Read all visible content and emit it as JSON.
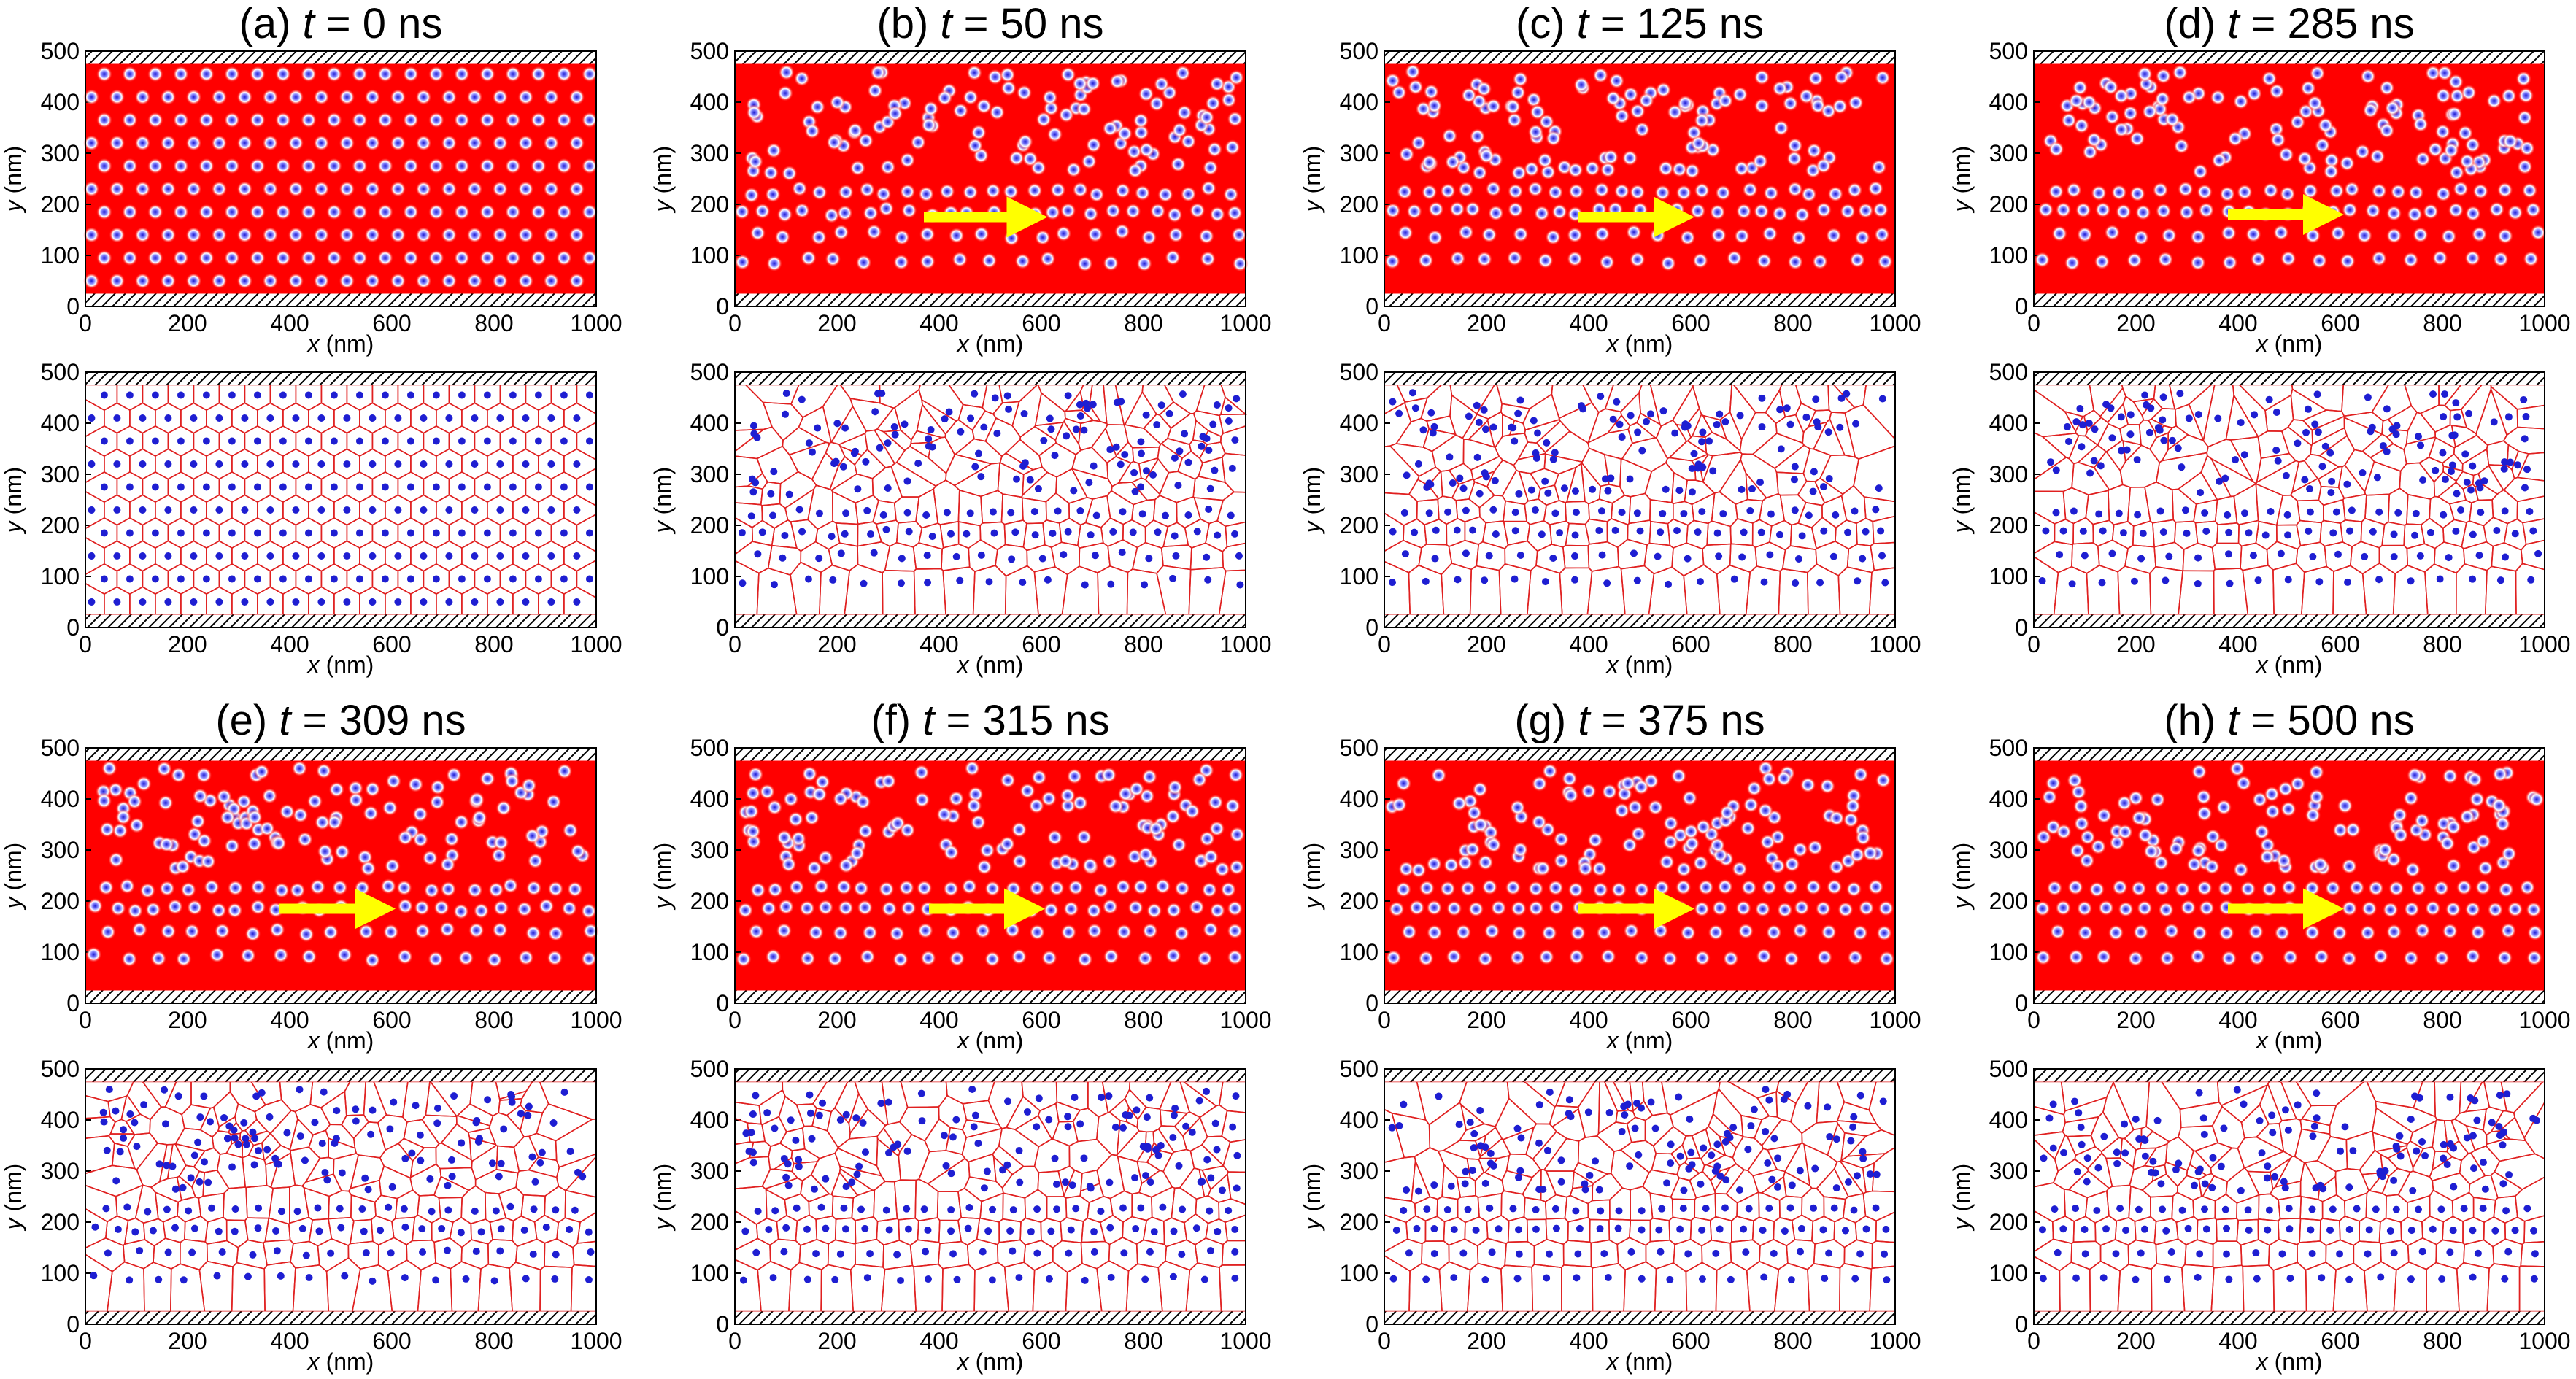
{
  "figure": {
    "background": "#ffffff",
    "colors": {
      "field": "#ff0000",
      "skyrmion_core": "#1e1ed2",
      "voronoi_edge": "#e02020",
      "voronoi_bg": "#ffffff",
      "arrow": "#ffff00",
      "hatch": "#000000"
    }
  },
  "chart_data": [
    {
      "id": "a",
      "label_prefix": "(a)",
      "var": "t",
      "eq": " = ",
      "value_text": "0 ns",
      "time_ns": 0,
      "arrow": null
    },
    {
      "id": "b",
      "label_prefix": "(b)",
      "var": "t",
      "eq": " = ",
      "value_text": "50 ns",
      "time_ns": 50,
      "arrow": {
        "x_start": 370,
        "x_end": 625,
        "y": 175
      }
    },
    {
      "id": "c",
      "label_prefix": "(c)",
      "var": "t",
      "eq": " = ",
      "value_text": "125 ns",
      "time_ns": 125,
      "arrow": {
        "x_start": 380,
        "x_end": 620,
        "y": 175
      }
    },
    {
      "id": "d",
      "label_prefix": "(d)",
      "var": "t",
      "eq": " = ",
      "value_text": "285 ns",
      "time_ns": 285,
      "arrow": {
        "x_start": 380,
        "x_end": 620,
        "y": 180
      }
    },
    {
      "id": "e",
      "label_prefix": "(e)",
      "var": "t",
      "eq": " = ",
      "value_text": "309 ns",
      "time_ns": 309,
      "arrow": {
        "x_start": 380,
        "x_end": 620,
        "y": 185
      }
    },
    {
      "id": "f",
      "label_prefix": "(f)",
      "var": "t",
      "eq": " = ",
      "value_text": "315 ns",
      "time_ns": 315,
      "arrow": {
        "x_start": 380,
        "x_end": 620,
        "y": 185
      }
    },
    {
      "id": "g",
      "label_prefix": "(g)",
      "var": "t",
      "eq": " = ",
      "value_text": "375 ns",
      "time_ns": 375,
      "arrow": {
        "x_start": 380,
        "x_end": 620,
        "y": 185
      }
    },
    {
      "id": "h",
      "label_prefix": "(h)",
      "var": "t",
      "eq": " = ",
      "value_text": "500 ns",
      "time_ns": 500,
      "arrow": {
        "x_start": 380,
        "x_end": 620,
        "y": 185
      }
    }
  ],
  "axes": {
    "xlabel_var": "x",
    "xlabel_unit": " (nm)",
    "ylabel_var": "y",
    "ylabel_unit": " (nm)",
    "xlim": [
      0,
      1000
    ],
    "ylim": [
      0,
      500
    ],
    "xticks": [
      "0",
      "200",
      "400",
      "600",
      "800",
      "1000"
    ],
    "yticks": [
      "0",
      "100",
      "200",
      "300",
      "400",
      "500"
    ],
    "boundary_low": 25,
    "boundary_high": 475
  }
}
